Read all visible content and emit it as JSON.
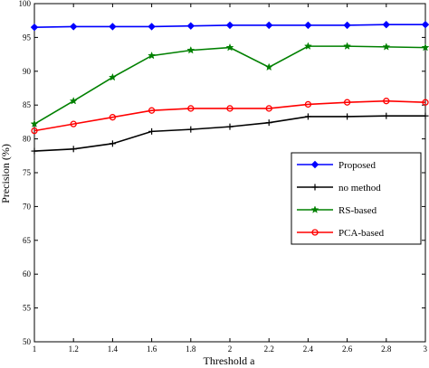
{
  "chart_data": {
    "type": "line",
    "xlabel": "Threshold a",
    "ylabel": "Precision (%)",
    "xlim": [
      1,
      3
    ],
    "ylim": [
      50,
      100
    ],
    "x": [
      1,
      1.2,
      1.4,
      1.6,
      1.8,
      2,
      2.2,
      2.4,
      2.6,
      2.8,
      3
    ],
    "xtick_labels": [
      "1",
      "1.2",
      "1.4",
      "1.6",
      "1.8",
      "2",
      "2.2",
      "2.4",
      "2.6",
      "2.8",
      "3"
    ],
    "yticks": [
      50,
      55,
      60,
      65,
      70,
      75,
      80,
      85,
      90,
      95,
      100
    ],
    "ytick_labels": [
      "50",
      "55",
      "60",
      "65",
      "70",
      "75",
      "80",
      "85",
      "90",
      "95",
      "100"
    ],
    "grid": false,
    "legend_position": "center-right",
    "series": [
      {
        "name": "Proposed",
        "color": "#0000ff",
        "marker": "diamond",
        "values": [
          96.5,
          96.6,
          96.6,
          96.6,
          96.7,
          96.8,
          96.8,
          96.8,
          96.8,
          96.9,
          96.9
        ]
      },
      {
        "name": "no method",
        "color": "#000000",
        "marker": "plus",
        "values": [
          78.2,
          78.5,
          79.3,
          81.1,
          81.4,
          81.8,
          82.4,
          83.3,
          83.3,
          83.4,
          83.4
        ]
      },
      {
        "name": "RS-based",
        "color": "#008000",
        "marker": "star",
        "values": [
          82.2,
          85.6,
          89.1,
          92.3,
          93.1,
          93.5,
          90.6,
          93.7,
          93.7,
          93.6,
          93.5
        ]
      },
      {
        "name": "PCA-based",
        "color": "#ff0000",
        "marker": "circle",
        "values": [
          81.2,
          82.2,
          83.2,
          84.2,
          84.5,
          84.5,
          84.5,
          85.1,
          85.4,
          85.6,
          85.4
        ]
      }
    ]
  }
}
